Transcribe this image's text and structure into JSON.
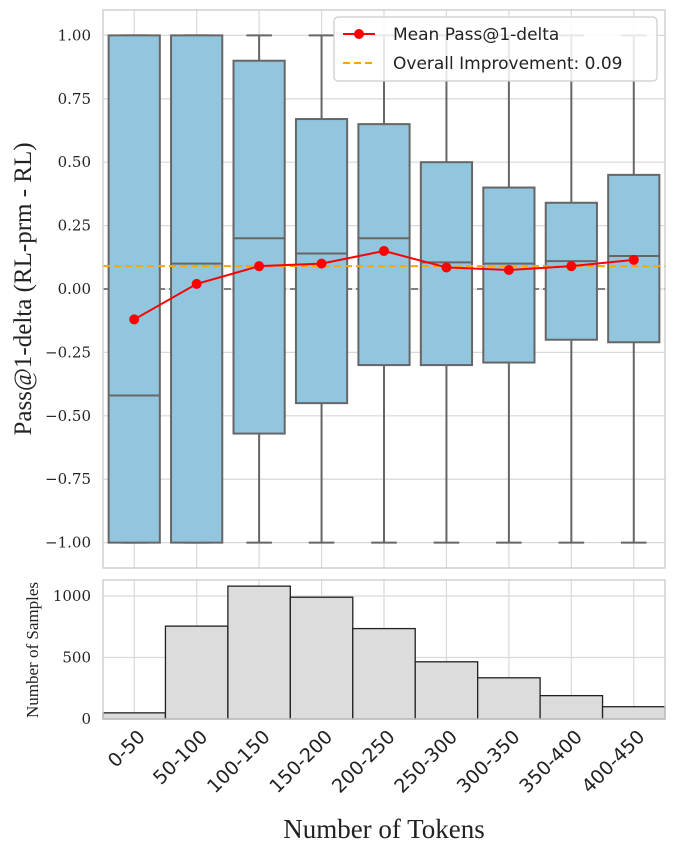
{
  "chart_data": [
    {
      "type": "box",
      "title": "",
      "ylabel": "Pass@1-delta (RL-prm - RL)",
      "xlabel": "",
      "ylim": [
        -1.1,
        1.1
      ],
      "yticks": [
        -1.0,
        -0.75,
        -0.5,
        -0.25,
        0.0,
        0.25,
        0.5,
        0.75,
        1.0
      ],
      "ytick_labels": [
        "−1.00",
        "−0.75",
        "−0.50",
        "−0.25",
        "0.00",
        "0.25",
        "0.50",
        "0.75",
        "1.00"
      ],
      "categories": [
        "0-50",
        "50-100",
        "100-150",
        "150-200",
        "200-250",
        "250-300",
        "300-350",
        "350-400",
        "400-450"
      ],
      "boxes": [
        {
          "q1": -1.0,
          "median": -0.42,
          "q3": 1.0,
          "whisker_low": -1.0,
          "whisker_high": 1.0
        },
        {
          "q1": -1.0,
          "median": 0.1,
          "q3": 1.0,
          "whisker_low": -1.0,
          "whisker_high": 1.0
        },
        {
          "q1": -0.57,
          "median": 0.2,
          "q3": 0.9,
          "whisker_low": -1.0,
          "whisker_high": 1.0
        },
        {
          "q1": -0.45,
          "median": 0.14,
          "q3": 0.67,
          "whisker_low": -1.0,
          "whisker_high": 1.0
        },
        {
          "q1": -0.3,
          "median": 0.2,
          "q3": 0.65,
          "whisker_low": -1.0,
          "whisker_high": 1.0
        },
        {
          "q1": -0.3,
          "median": 0.105,
          "q3": 0.5,
          "whisker_low": -1.0,
          "whisker_high": 1.0
        },
        {
          "q1": -0.29,
          "median": 0.1,
          "q3": 0.4,
          "whisker_low": -1.0,
          "whisker_high": 1.0
        },
        {
          "q1": -0.2,
          "median": 0.11,
          "q3": 0.34,
          "whisker_low": -1.0,
          "whisker_high": 1.0
        },
        {
          "q1": -0.21,
          "median": 0.13,
          "q3": 0.45,
          "whisker_low": -1.0,
          "whisker_high": 1.0
        }
      ],
      "mean_series": {
        "name": "Mean Pass@1-delta",
        "values": [
          -0.12,
          0.02,
          0.09,
          0.1,
          0.15,
          0.085,
          0.075,
          0.09,
          0.115
        ]
      },
      "reference_lines": [
        {
          "name": "Overall Improvement: 0.09",
          "value": 0.09
        },
        {
          "name": "zero",
          "value": 0.0
        }
      ],
      "legend": {
        "position": "upper-right",
        "entries": [
          "Mean Pass@1-delta",
          "Overall Improvement: 0.09"
        ]
      },
      "grid": true,
      "colors": {
        "box": "#92c6df",
        "box_edge": "#666666",
        "mean": "#ff0000",
        "overall": "#ffa500",
        "zero": "#808080"
      }
    },
    {
      "type": "histogram",
      "ylabel": "Number of Samples",
      "xlabel": "Number of Tokens",
      "ylim": [
        0,
        1130
      ],
      "yticks": [
        0,
        500,
        1000
      ],
      "ytick_labels": [
        "0",
        "500",
        "1000"
      ],
      "categories": [
        "0-50",
        "50-100",
        "100-150",
        "150-200",
        "200-250",
        "250-300",
        "300-350",
        "350-400",
        "400-450"
      ],
      "values": [
        50,
        755,
        1080,
        990,
        735,
        465,
        335,
        190,
        100
      ],
      "grid": true,
      "colors": {
        "bar": "#dcdcdc",
        "bar_edge": "#222222"
      }
    }
  ]
}
